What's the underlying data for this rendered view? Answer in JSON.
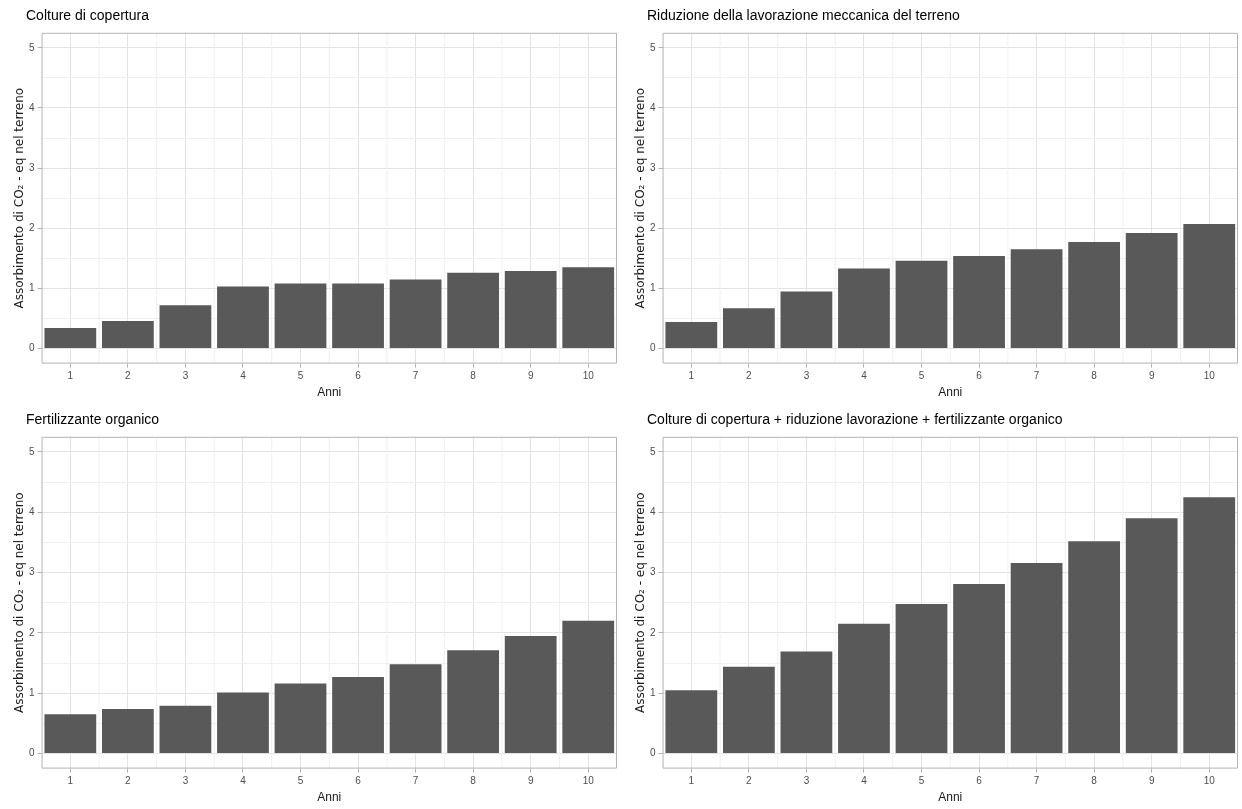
{
  "chart_data": [
    {
      "type": "bar",
      "title": "Colture di copertura",
      "xlabel": "Anni",
      "ylabel": "Assorbimento di CO₂ - eq nel terreno",
      "categories": [
        "1",
        "2",
        "3",
        "4",
        "5",
        "6",
        "7",
        "8",
        "9",
        "10"
      ],
      "color": "#595959",
      "grid": true,
      "ylim": [
        -0.25,
        5.25
      ],
      "yticks": [
        0,
        {
          "value": 0.5,
          "label": null
        },
        1,
        {
          "value": 1.5,
          "label": null
        },
        2,
        {
          "value": 2.5,
          "label": null
        },
        3,
        {
          "value": 3.5,
          "label": null
        },
        4,
        {
          "value": 4.5,
          "label": null
        },
        5
      ],
      "values": [
        0.34,
        0.46,
        0.72,
        1.03,
        1.08,
        1.08,
        1.15,
        1.26,
        1.29,
        1.35
      ]
    },
    {
      "type": "bar",
      "title": "Riduzione della lavorazione meccanica del terreno",
      "xlabel": "Anni",
      "ylabel": "Assorbimento di CO₂ - eq nel terreno",
      "categories": [
        "1",
        "2",
        "3",
        "4",
        "5",
        "6",
        "7",
        "8",
        "9",
        "10"
      ],
      "color": "#595959",
      "grid": true,
      "ylim": [
        -0.25,
        5.25
      ],
      "yticks": [
        0,
        {
          "value": 0.5,
          "label": null
        },
        1,
        {
          "value": 1.5,
          "label": null
        },
        2,
        {
          "value": 2.5,
          "label": null
        },
        3,
        {
          "value": 3.5,
          "label": null
        },
        4,
        {
          "value": 4.5,
          "label": null
        },
        5
      ],
      "values": [
        0.44,
        0.67,
        0.95,
        1.33,
        1.46,
        1.54,
        1.65,
        1.77,
        1.92,
        2.07
      ]
    },
    {
      "type": "bar",
      "title": "Fertilizzante organico",
      "xlabel": "Anni",
      "ylabel": "Assorbimento di CO₂ - eq nel terreno",
      "categories": [
        "1",
        "2",
        "3",
        "4",
        "5",
        "6",
        "7",
        "8",
        "9",
        "10"
      ],
      "color": "#595959",
      "grid": true,
      "ylim": [
        -0.25,
        5.25
      ],
      "yticks": [
        0,
        {
          "value": 0.5,
          "label": null
        },
        1,
        {
          "value": 1.5,
          "label": null
        },
        2,
        {
          "value": 2.5,
          "label": null
        },
        3,
        {
          "value": 3.5,
          "label": null
        },
        4,
        {
          "value": 4.5,
          "label": null
        },
        5
      ],
      "values": [
        0.65,
        0.74,
        0.79,
        1.01,
        1.16,
        1.27,
        1.48,
        1.71,
        1.95,
        2.2
      ]
    },
    {
      "type": "bar",
      "title": "Colture di copertura + riduzione lavorazione + fertilizzante organico",
      "xlabel": "Anni",
      "ylabel": "Assorbimento di CO₂ - eq nel terreno",
      "categories": [
        "1",
        "2",
        "3",
        "4",
        "5",
        "6",
        "7",
        "8",
        "9",
        "10"
      ],
      "color": "#595959",
      "grid": true,
      "ylim": [
        -0.25,
        5.25
      ],
      "yticks": [
        0,
        {
          "value": 0.5,
          "label": null
        },
        1,
        {
          "value": 1.5,
          "label": null
        },
        2,
        {
          "value": 2.5,
          "label": null
        },
        3,
        {
          "value": 3.5,
          "label": null
        },
        4,
        {
          "value": 4.5,
          "label": null
        },
        5
      ],
      "values": [
        1.05,
        1.44,
        1.69,
        2.15,
        2.48,
        2.81,
        3.16,
        3.52,
        3.9,
        4.25
      ]
    }
  ]
}
